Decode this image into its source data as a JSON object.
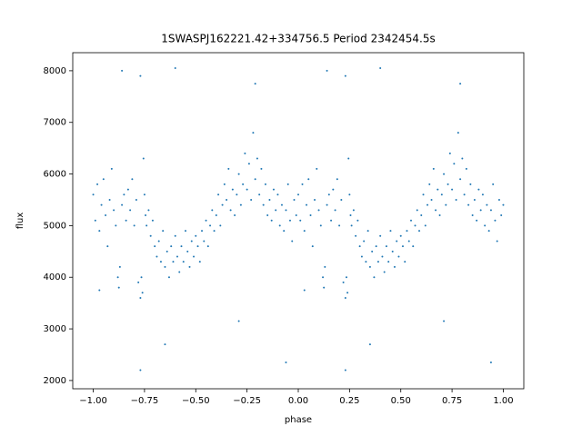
{
  "chart_data": {
    "type": "scatter",
    "title": "1SWASPJ162221.42+334756.5 Period 2342454.5s",
    "x_label": "phase",
    "y_label": "flux",
    "color": "#1f77b4",
    "xlim": [
      -1.1,
      1.1
    ],
    "ylim": [
      1840,
      8350
    ],
    "xticks": [
      {
        "value": -1,
        "label": "−1.00"
      },
      {
        "value": -0.75,
        "label": "−0.75"
      },
      {
        "value": -0.5,
        "label": "−0.50"
      },
      {
        "value": -0.25,
        "label": "−0.25"
      },
      {
        "value": 0,
        "label": "0.00"
      },
      {
        "value": 0.25,
        "label": "0.25"
      },
      {
        "value": 0.5,
        "label": "0.50"
      },
      {
        "value": 0.75,
        "label": "0.75"
      },
      {
        "value": 1,
        "label": "1.00"
      }
    ],
    "yticks": [
      2000,
      3000,
      4000,
      5000,
      6000,
      7000,
      8000
    ],
    "x": [
      -1.0,
      -0.99,
      -0.98,
      -0.97,
      -0.96,
      -0.95,
      -0.94,
      -0.93,
      -0.92,
      -0.91,
      -0.9,
      -0.89,
      -0.88,
      -0.875,
      -0.87,
      -0.86,
      -0.85,
      -0.84,
      -0.83,
      -0.82,
      -0.81,
      -0.8,
      -0.79,
      -0.78,
      -0.77,
      -0.765,
      -0.76,
      -0.755,
      -0.75,
      -0.745,
      -0.74,
      -0.73,
      -0.72,
      -0.71,
      -0.7,
      -0.69,
      -0.68,
      -0.67,
      -0.66,
      -0.65,
      -0.64,
      -0.63,
      -0.62,
      -0.61,
      -0.6,
      -0.59,
      -0.58,
      -0.57,
      -0.56,
      -0.55,
      -0.54,
      -0.53,
      -0.52,
      -0.51,
      -0.5,
      -0.49,
      -0.48,
      -0.47,
      -0.46,
      -0.45,
      -0.44,
      -0.43,
      -0.42,
      -0.41,
      -0.4,
      -0.39,
      -0.38,
      -0.37,
      -0.36,
      -0.35,
      -0.34,
      -0.33,
      -0.32,
      -0.31,
      -0.3,
      -0.29,
      -0.28,
      -0.27,
      -0.26,
      -0.25,
      -0.24,
      -0.23,
      -0.22,
      -0.21,
      -0.2,
      -0.19,
      -0.18,
      -0.17,
      -0.16,
      -0.15,
      -0.14,
      -0.13,
      -0.12,
      -0.11,
      -0.1,
      -0.09,
      -0.08,
      -0.07,
      -0.06,
      -0.05,
      -0.04,
      -0.03,
      -0.02,
      -0.01,
      -0.86,
      -0.77,
      -0.77,
      -0.65,
      -0.6,
      -0.21,
      -0.29,
      -0.06,
      -0.97,
      0.0,
      0.01,
      0.02,
      0.03,
      0.04,
      0.05,
      0.06,
      0.07,
      0.08,
      0.09,
      0.1,
      0.11,
      0.12,
      0.125,
      0.13,
      0.14,
      0.15,
      0.16,
      0.17,
      0.18,
      0.19,
      0.2,
      0.21,
      0.22,
      0.23,
      0.235,
      0.24,
      0.245,
      0.25,
      0.255,
      0.26,
      0.27,
      0.28,
      0.29,
      0.3,
      0.31,
      0.32,
      0.33,
      0.34,
      0.35,
      0.36,
      0.37,
      0.38,
      0.39,
      0.4,
      0.41,
      0.42,
      0.43,
      0.44,
      0.45,
      0.46,
      0.47,
      0.48,
      0.49,
      0.5,
      0.51,
      0.52,
      0.53,
      0.54,
      0.55,
      0.56,
      0.57,
      0.58,
      0.59,
      0.6,
      0.61,
      0.62,
      0.63,
      0.64,
      0.65,
      0.66,
      0.67,
      0.68,
      0.69,
      0.7,
      0.71,
      0.72,
      0.73,
      0.74,
      0.75,
      0.76,
      0.77,
      0.78,
      0.79,
      0.8,
      0.81,
      0.82,
      0.83,
      0.84,
      0.85,
      0.86,
      0.87,
      0.88,
      0.89,
      0.9,
      0.91,
      0.92,
      0.93,
      0.94,
      0.95,
      0.96,
      0.97,
      0.98,
      0.99,
      0.14,
      0.23,
      0.23,
      0.35,
      0.4,
      0.79,
      0.71,
      0.94,
      0.03,
      1.0
    ],
    "values": [
      5600,
      5100,
      5800,
      4900,
      5400,
      5900,
      5200,
      4600,
      5500,
      6100,
      5300,
      5000,
      4000,
      3800,
      4200,
      5400,
      5600,
      5100,
      5700,
      5300,
      5900,
      5000,
      5500,
      3900,
      3600,
      4000,
      3700,
      6300,
      5600,
      5200,
      5000,
      5300,
      4800,
      5100,
      4600,
      4400,
      4700,
      4300,
      4900,
      4200,
      4500,
      4000,
      4600,
      4300,
      4800,
      4400,
      4100,
      4600,
      4300,
      4900,
      4500,
      4200,
      4700,
      4400,
      4800,
      4600,
      4300,
      4900,
      4700,
      5100,
      4600,
      5000,
      5300,
      4900,
      5200,
      5600,
      5000,
      5400,
      5800,
      5500,
      6100,
      5300,
      5700,
      5200,
      5600,
      6000,
      5400,
      5800,
      6400,
      5700,
      6200,
      5500,
      6800,
      5900,
      6300,
      5600,
      6100,
      5400,
      5800,
      5200,
      5500,
      5100,
      5700,
      5300,
      5600,
      5000,
      5400,
      4900,
      5300,
      5800,
      5100,
      4700,
      5500,
      5200,
      8000,
      7900,
      2200,
      2700,
      8050,
      7750,
      3150,
      2350,
      3750,
      5600,
      5100,
      5800,
      4900,
      5400,
      5900,
      5200,
      4600,
      5500,
      6100,
      5300,
      5000,
      4000,
      3800,
      4200,
      5400,
      5600,
      5100,
      5700,
      5300,
      5900,
      5000,
      5500,
      3900,
      3600,
      4000,
      3700,
      6300,
      5600,
      5200,
      5000,
      5300,
      4800,
      5100,
      4600,
      4400,
      4700,
      4300,
      4900,
      4200,
      4500,
      4000,
      4600,
      4300,
      4800,
      4400,
      4100,
      4600,
      4300,
      4900,
      4500,
      4200,
      4700,
      4400,
      4800,
      4600,
      4300,
      4900,
      4700,
      5100,
      4600,
      5000,
      5300,
      4900,
      5200,
      5600,
      5000,
      5400,
      5800,
      5500,
      6100,
      5300,
      5700,
      5200,
      5600,
      6000,
      5400,
      5800,
      6400,
      5700,
      6200,
      5500,
      6800,
      5900,
      6300,
      5600,
      6100,
      5400,
      5800,
      5200,
      5500,
      5100,
      5700,
      5300,
      5600,
      5000,
      5400,
      4900,
      5300,
      5800,
      5100,
      4700,
      5500,
      5200,
      8000,
      7900,
      2200,
      2700,
      8050,
      7750,
      3150,
      2350,
      3750,
      5400
    ]
  }
}
